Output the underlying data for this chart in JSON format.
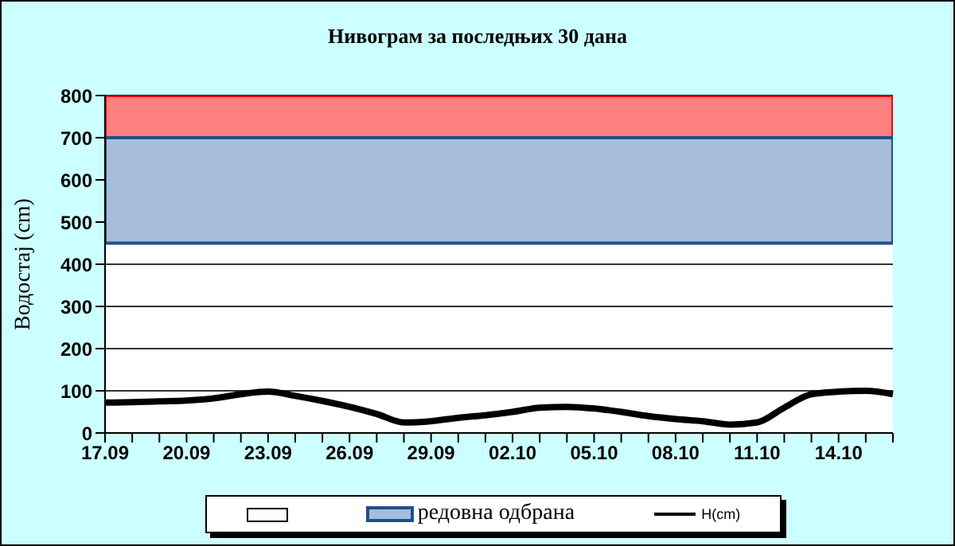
{
  "chart_data": {
    "type": "line",
    "title": "Нивограм за последњих 30 дана",
    "ylabel": "Водостај (cm)",
    "categories": [
      "17.09",
      null,
      null,
      "20.09",
      null,
      null,
      "23.09",
      null,
      null,
      "26.09",
      null,
      null,
      "29.09",
      null,
      null,
      "02.10",
      null,
      null,
      "05.10",
      null,
      null,
      "08.10",
      null,
      null,
      "11.10",
      null,
      null,
      "14.10",
      null,
      null
    ],
    "series": [
      {
        "name": "H(cm)",
        "color": "#000000",
        "values": [
          72,
          73,
          75,
          77,
          82,
          92,
          98,
          88,
          76,
          62,
          45,
          25,
          28,
          36,
          42,
          50,
          60,
          62,
          58,
          50,
          40,
          33,
          28,
          20,
          25,
          60,
          92,
          98,
          100,
          92
        ]
      }
    ],
    "bands": [
      {
        "axis": "y",
        "from": 700,
        "to": 800,
        "color": "#ff8080"
      },
      {
        "axis": "y",
        "from": 450,
        "to": 700,
        "label": "редовна одбрана",
        "color": "#a6bddb"
      }
    ],
    "ylim": [
      0,
      800
    ],
    "yticks": [
      0,
      100,
      200,
      300,
      400,
      500,
      600,
      700,
      800
    ],
    "grid": "y",
    "legend": "bottom",
    "marker": "none",
    "line_style": "solid"
  }
}
